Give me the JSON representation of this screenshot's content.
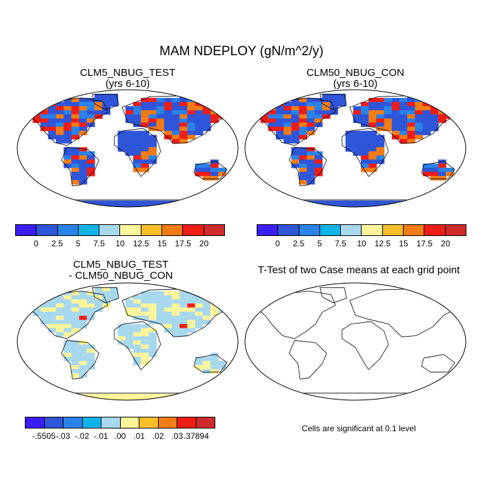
{
  "title": "MAM NDEPLOY (gN/m^2/y)",
  "panels": {
    "test": {
      "title_line1": "CLM5_NBUG_TEST",
      "title_line2": "(yrs 6-10)"
    },
    "control": {
      "title_line1": "CLM50_NBUG_CON",
      "title_line2": "(yrs 6-10)"
    },
    "difference": {
      "title_line1": "CLM5_NBUG_TEST",
      "title_line2": "- CLM50_NBUG_CON"
    },
    "ttest": {
      "title": "T-Test of two Case means at each grid point",
      "note": "Cells are significant at 0.1 level"
    }
  },
  "colorbars": {
    "top": {
      "colors": [
        "#3a1ef5",
        "#2f55d8",
        "#2a83ea",
        "#10b4ec",
        "#a8d8ee",
        "#fdf59a",
        "#f7be28",
        "#f47c14",
        "#f01d17",
        "#cf2b2c"
      ],
      "labels": [
        "0",
        "2.5",
        "5",
        "7.5",
        "10",
        "12.5",
        "15",
        "17.5",
        "20"
      ]
    },
    "diff": {
      "colors": [
        "#3a1ef5",
        "#2f55d8",
        "#2a83ea",
        "#10b4ec",
        "#a8d8ee",
        "#fdf59a",
        "#f7be28",
        "#f47c14",
        "#f01d17",
        "#cf2b2c"
      ],
      "labels": [
        "-.5505",
        "-.03",
        "-.02",
        "-.01",
        ".00",
        ".01",
        ".02",
        ".03",
        ".37894"
      ]
    }
  },
  "map_palette": {
    "ocean": "#ffffff",
    "low": "#2f55d8",
    "mid": "#2a83ea",
    "high": "#f01d17",
    "warm": "#f47c14",
    "diff_land": "#a8d8ee",
    "diff_pos": "#fdf59a",
    "antarctica_top": "#2f55d8",
    "antarctica_diff": "#fdf59a"
  }
}
